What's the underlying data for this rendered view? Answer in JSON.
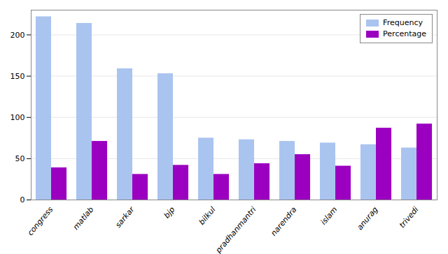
{
  "chart_data": {
    "type": "bar",
    "categories": [
      "congress",
      "matlab",
      "sarkar",
      "bjp",
      "bilkul",
      "pradhanmantri",
      "narendra",
      "islam",
      "anurag",
      "trivedi"
    ],
    "series": [
      {
        "name": "Frequency",
        "color": "#aac4f0",
        "values": [
          222,
          214,
          159,
          153,
          75,
          73,
          71,
          69,
          67,
          63
        ]
      },
      {
        "name": "Percentage",
        "color": "#9b00c0",
        "values": [
          39,
          71,
          31,
          42,
          31,
          44,
          55,
          41,
          87,
          92
        ]
      }
    ],
    "ylim": [
      0,
      230
    ],
    "yticks": [
      0,
      50,
      100,
      150,
      200
    ],
    "grid": true,
    "legend": "upper right"
  }
}
